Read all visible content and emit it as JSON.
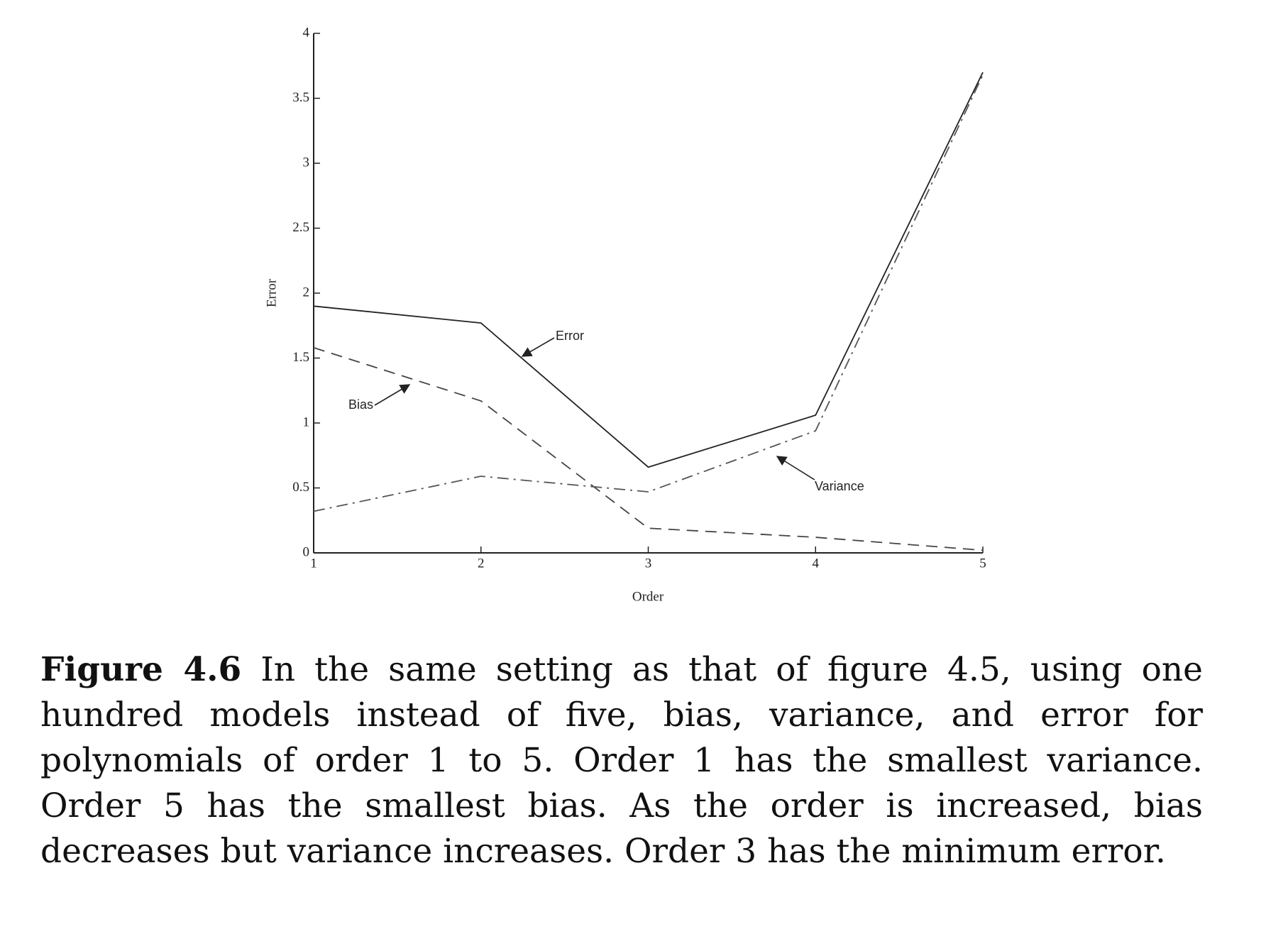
{
  "chart_data": {
    "type": "line",
    "x": [
      1,
      2,
      3,
      4,
      5
    ],
    "xlabel": "Order",
    "ylabel": "Error",
    "xlim": [
      1,
      5
    ],
    "ylim": [
      0,
      4
    ],
    "xticks": [
      1,
      2,
      3,
      4,
      5
    ],
    "yticks": [
      0,
      0.5,
      1,
      1.5,
      2,
      2.5,
      3,
      3.5,
      4
    ],
    "grid": false,
    "series": [
      {
        "name": "Error",
        "color": "#222222",
        "line_style": "solid",
        "values": [
          1.9,
          1.77,
          0.66,
          1.06,
          3.7
        ]
      },
      {
        "name": "Bias",
        "color": "#444444",
        "line_style": "dashed",
        "values": [
          1.58,
          1.17,
          0.19,
          0.12,
          0.02
        ]
      },
      {
        "name": "Variance",
        "color": "#555555",
        "line_style": "dashdot",
        "values": [
          0.32,
          0.59,
          0.47,
          0.94,
          3.68
        ]
      }
    ]
  },
  "caption": {
    "label": "Figure 4.6",
    "text": "In the same setting as that of figure 4.5, using one hundred models instead of five, bias, variance, and error for polynomials of order 1 to 5. Order 1 has the smallest variance. Order 5 has the smallest bias. As the order is increased, bias decreases but variance increases. Order 3 has the minimum error."
  }
}
